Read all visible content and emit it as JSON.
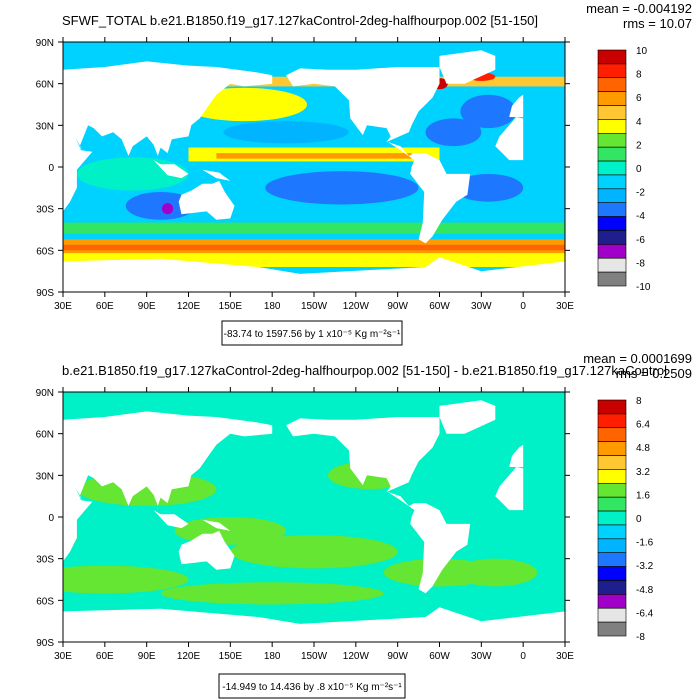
{
  "panels": [
    {
      "title": "SFWF_TOTAL b.e21.B1850.f19_g17.127kaControl-2deg-halfhourpop.002 [51-150]",
      "mean_label": "mean = -0.004192",
      "rms_label": "rms = 10.07",
      "info_label": "-83.74 to 1597.56 by 1 x10⁻⁵ Kg m⁻²s⁻¹",
      "colorbar": {
        "labels": [
          "10",
          "8",
          "6",
          "4",
          "2",
          "0",
          "-2",
          "-4",
          "-6",
          "-8",
          "-10"
        ],
        "colors": [
          "#c80000",
          "#ff1e00",
          "#ff6400",
          "#ff9a00",
          "#ffc832",
          "#ffff00",
          "#64e632",
          "#32e664",
          "#00f0c8",
          "#00d2ff",
          "#00b4ff",
          "#1e78ff",
          "#0000ff",
          "#1e1e8c",
          "#a000c8",
          "#e6e6e6",
          "#808080"
        ]
      },
      "field": "total"
    },
    {
      "title": "b.e21.B1850.f19_g17.127kaControl-2deg-halfhourpop.002 [51-150] - b.e21.B1850.f19_g17.127kaControl",
      "mean_label": "mean = 0.0001699",
      "rms_label": "rms = 0.2509",
      "info_label": "-14.949 to 14.436 by .8 x10⁻⁵ Kg m⁻²s⁻¹",
      "colorbar": {
        "labels": [
          "8",
          "6.4",
          "4.8",
          "3.2",
          "1.6",
          "0",
          "-1.6",
          "-3.2",
          "-4.8",
          "-6.4",
          "-8"
        ],
        "colors": [
          "#c80000",
          "#ff1e00",
          "#ff6400",
          "#ff9a00",
          "#ffc832",
          "#ffff00",
          "#64e632",
          "#32e664",
          "#00f0c8",
          "#00d2ff",
          "#00b4ff",
          "#1e78ff",
          "#0000ff",
          "#1e1e8c",
          "#a000c8",
          "#e6e6e6",
          "#808080"
        ]
      },
      "field": "diff"
    }
  ],
  "axes": {
    "lon_labels": [
      "30E",
      "60E",
      "90E",
      "120E",
      "150E",
      "180",
      "150W",
      "120W",
      "90W",
      "60W",
      "30W",
      "0",
      "30E"
    ],
    "lat_labels": [
      "90N",
      "60N",
      "30N",
      "0",
      "30S",
      "60S",
      "90S"
    ]
  }
}
